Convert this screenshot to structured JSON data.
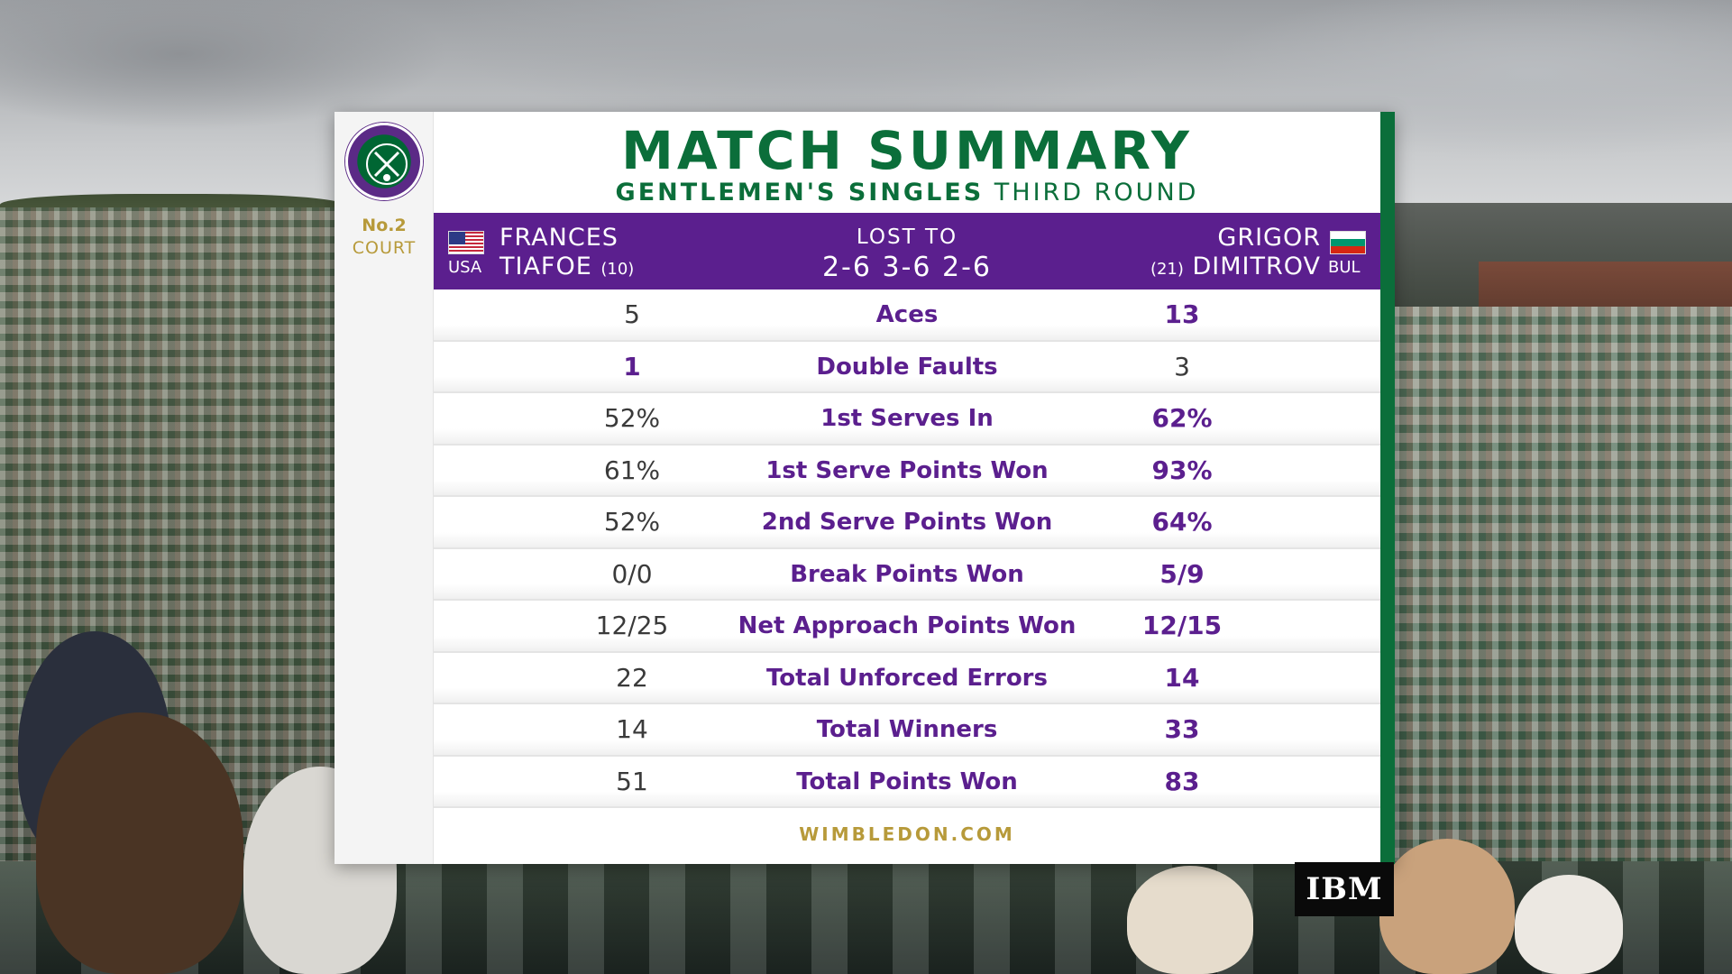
{
  "header": {
    "title": "MATCH SUMMARY",
    "event_bold": "GENTLEMEN'S SINGLES",
    "event_round": "THIRD ROUND",
    "court_line1": "No.2",
    "court_line2": "COURT"
  },
  "players": {
    "left": {
      "first_name": "FRANCES",
      "last_name": "TIAFOE",
      "seed": "(10)",
      "nation": "USA",
      "flag": "usa-flag-icon"
    },
    "right": {
      "first_name": "GRIGOR",
      "last_name": "DIMITROV",
      "seed": "(21)",
      "nation": "BUL",
      "flag": "bulgaria-flag-icon"
    }
  },
  "result": {
    "label": "LOST TO",
    "score": "2-6 3-6 2-6"
  },
  "stats": [
    {
      "label": "Aces",
      "p1": "5",
      "p2": "13",
      "leader": "p2"
    },
    {
      "label": "Double Faults",
      "p1": "1",
      "p2": "3",
      "leader": "p1"
    },
    {
      "label": "1st Serves In",
      "p1": "52%",
      "p2": "62%",
      "leader": "p2"
    },
    {
      "label": "1st Serve Points Won",
      "p1": "61%",
      "p2": "93%",
      "leader": "p2"
    },
    {
      "label": "2nd Serve Points Won",
      "p1": "52%",
      "p2": "64%",
      "leader": "p2"
    },
    {
      "label": "Break Points Won",
      "p1": "0/0",
      "p2": "5/9",
      "leader": "p2"
    },
    {
      "label": "Net Approach Points Won",
      "p1": "12/25",
      "p2": "12/15",
      "leader": "p2"
    },
    {
      "label": "Total Unforced Errors",
      "p1": "22",
      "p2": "14",
      "leader": "p2"
    },
    {
      "label": "Total Winners",
      "p1": "14",
      "p2": "33",
      "leader": "p2"
    },
    {
      "label": "Total Points Won",
      "p1": "51",
      "p2": "83",
      "leader": "p2"
    }
  ],
  "footer": "WIMBLEDON.COM",
  "sponsor": "IBM",
  "logo": "wimbledon-logo-icon",
  "colors": {
    "purple": "#5b1f8e",
    "green": "#0b6e3a",
    "gold": "#b79a3a"
  }
}
